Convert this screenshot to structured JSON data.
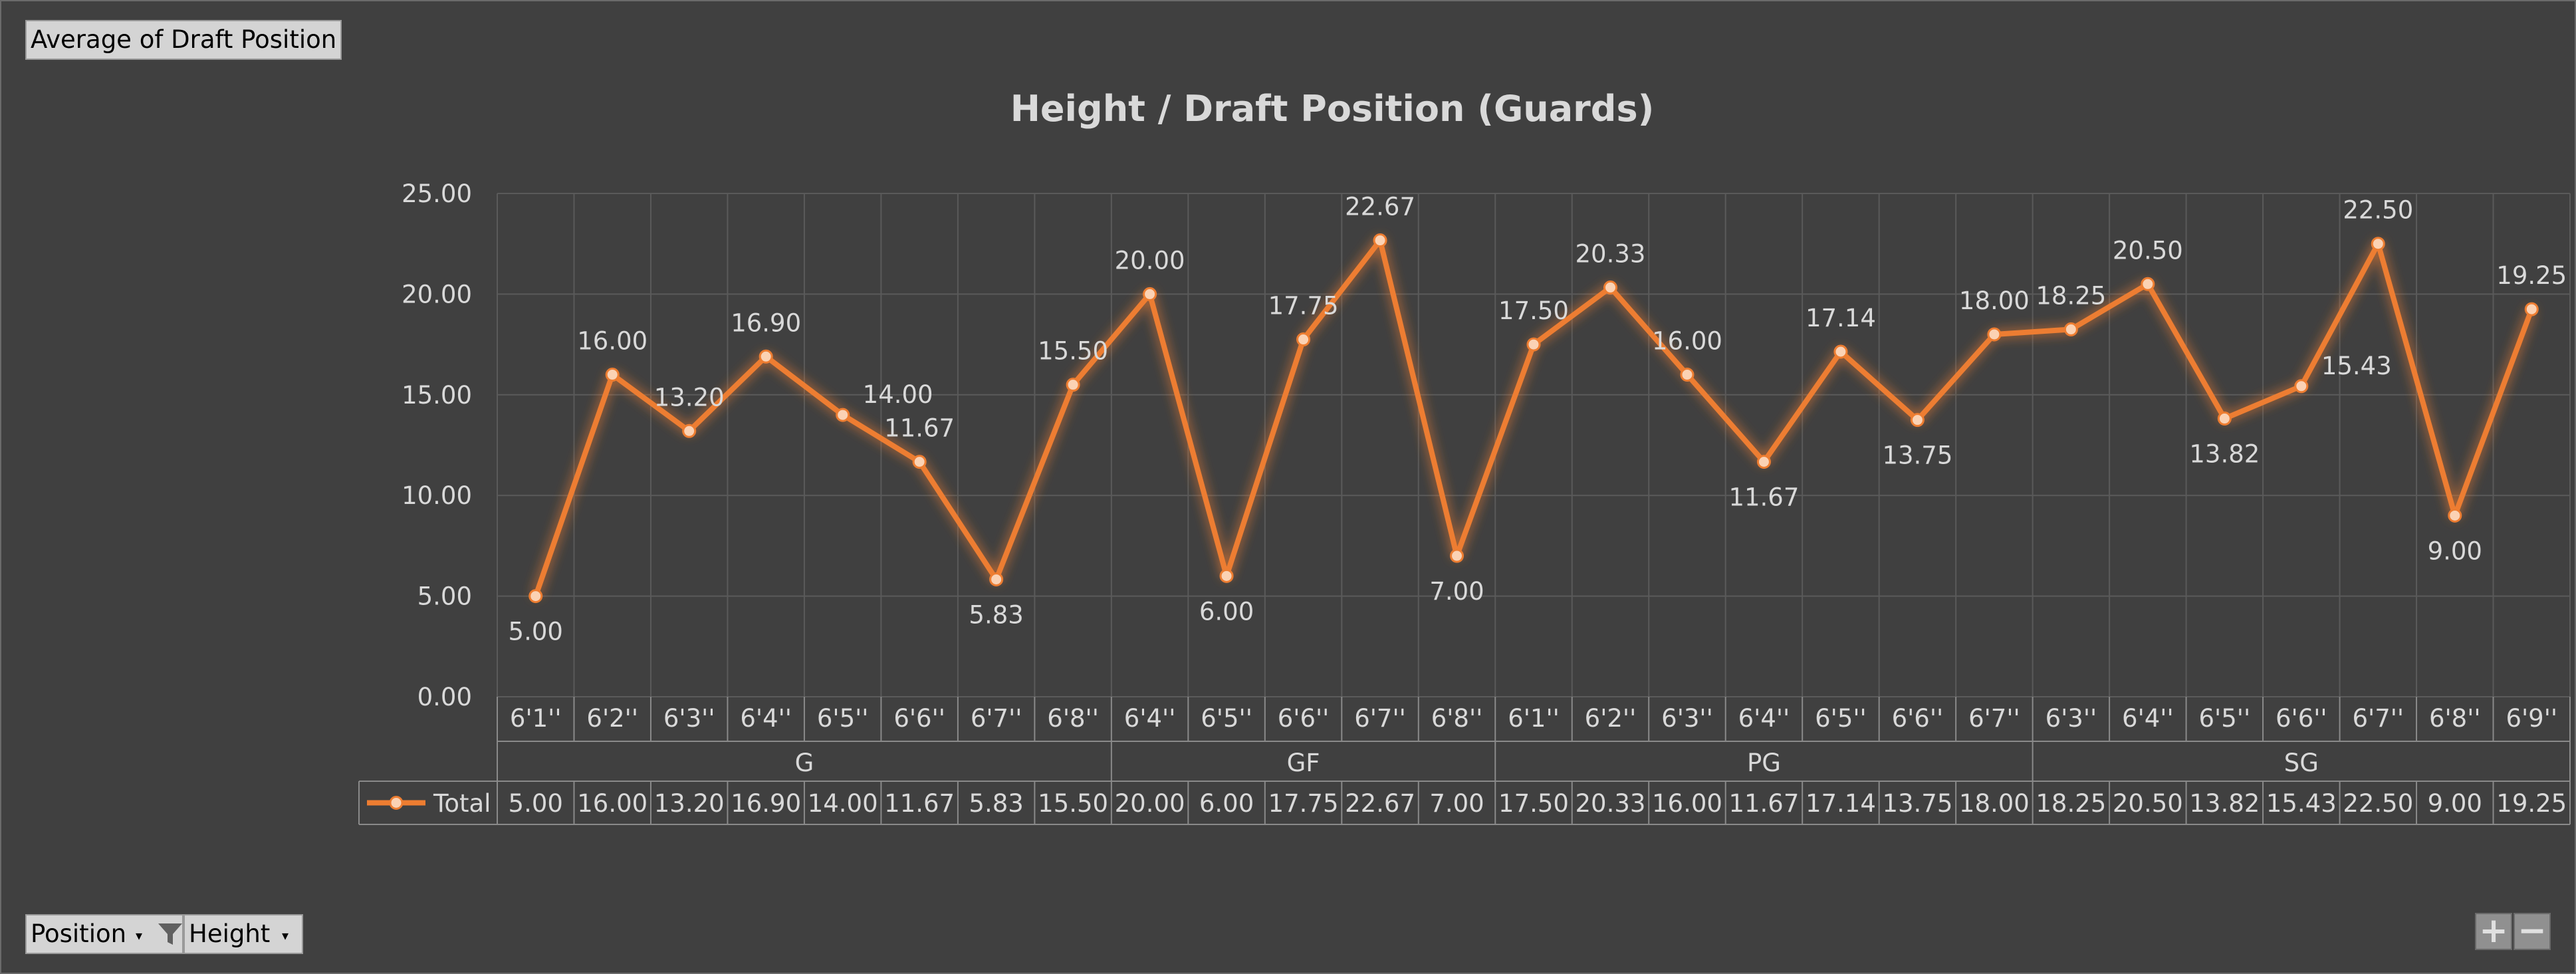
{
  "pivot": {
    "value_field": "Average of Draft Position",
    "axis_fields": [
      {
        "label": "Position",
        "filtered": true
      },
      {
        "label": "Height",
        "filtered": false
      }
    ],
    "zoom_in": "+",
    "zoom_out": "−"
  },
  "chart_data": {
    "type": "line",
    "title": "Height / Draft Position (Guards)",
    "series": [
      {
        "name": "Total",
        "color": "#ed7d31",
        "values": [
          5.0,
          16.0,
          13.2,
          16.9,
          14.0,
          11.67,
          5.83,
          15.5,
          20.0,
          6.0,
          17.75,
          22.67,
          7.0,
          17.5,
          20.33,
          16.0,
          11.67,
          17.14,
          13.75,
          18.0,
          18.25,
          20.5,
          13.82,
          15.43,
          22.5,
          9.0,
          19.25
        ]
      }
    ],
    "categories": [
      "6'1''",
      "6'2''",
      "6'3''",
      "6'4''",
      "6'5''",
      "6'6''",
      "6'7''",
      "6'8''",
      "6'4''",
      "6'5''",
      "6'6''",
      "6'7''",
      "6'8''",
      "6'1''",
      "6'2''",
      "6'3''",
      "6'4''",
      "6'5''",
      "6'6''",
      "6'7''",
      "6'3''",
      "6'4''",
      "6'5''",
      "6'6''",
      "6'7''",
      "6'8''",
      "6'9''"
    ],
    "groups": [
      {
        "label": "G",
        "count": 8
      },
      {
        "label": "GF",
        "count": 5
      },
      {
        "label": "PG",
        "count": 7
      },
      {
        "label": "SG",
        "count": 7
      }
    ],
    "label_positions": [
      "below",
      "above",
      "above",
      "above",
      "right",
      "above",
      "below",
      "above",
      "above",
      "below",
      "above",
      "above",
      "below",
      "above",
      "above",
      "above",
      "below",
      "above",
      "below",
      "above",
      "above",
      "above",
      "below",
      "right",
      "above",
      "below",
      "above"
    ],
    "y_ticks": [
      "0.00",
      "5.00",
      "10.00",
      "15.00",
      "20.00",
      "25.00"
    ],
    "ylim": [
      0,
      25
    ],
    "grid": true,
    "legend": "data-table"
  }
}
